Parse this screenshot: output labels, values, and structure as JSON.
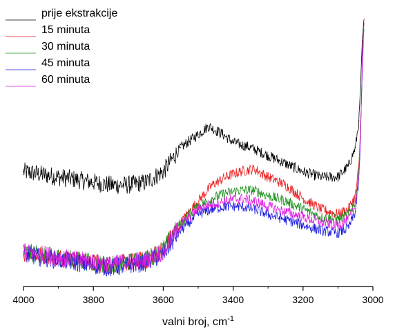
{
  "chart_data": {
    "type": "line",
    "xlabel": "valni broj, cm",
    "xlabel_superscript": "-1",
    "x_reversed": true,
    "xlim": [
      4000,
      3000
    ],
    "xticks": [
      4000,
      3800,
      3600,
      3400,
      3200,
      3000
    ],
    "y_ticks_shown": false,
    "ylim": [
      0,
      1
    ],
    "legend": {
      "placement": "top-left"
    },
    "series": [
      {
        "name": "prije ekstrakcije",
        "color": "#000000",
        "points": [
          [
            4000,
            0.43
          ],
          [
            3950,
            0.42
          ],
          [
            3900,
            0.41
          ],
          [
            3850,
            0.4
          ],
          [
            3800,
            0.39
          ],
          [
            3750,
            0.38
          ],
          [
            3700,
            0.38
          ],
          [
            3650,
            0.39
          ],
          [
            3600,
            0.43
          ],
          [
            3550,
            0.52
          ],
          [
            3500,
            0.57
          ],
          [
            3470,
            0.6
          ],
          [
            3430,
            0.57
          ],
          [
            3400,
            0.54
          ],
          [
            3350,
            0.52
          ],
          [
            3300,
            0.49
          ],
          [
            3250,
            0.46
          ],
          [
            3200,
            0.43
          ],
          [
            3150,
            0.41
          ],
          [
            3100,
            0.41
          ],
          [
            3070,
            0.45
          ],
          [
            3050,
            0.52
          ],
          [
            3040,
            0.62
          ],
          [
            3035,
            0.75
          ],
          [
            3030,
            0.92
          ],
          [
            3025,
            1.0
          ]
        ]
      },
      {
        "name": "15 minuta",
        "color": "#e8191c",
        "points": [
          [
            4000,
            0.13
          ],
          [
            3950,
            0.12
          ],
          [
            3900,
            0.11
          ],
          [
            3850,
            0.1
          ],
          [
            3800,
            0.09
          ],
          [
            3750,
            0.08
          ],
          [
            3700,
            0.09
          ],
          [
            3650,
            0.1
          ],
          [
            3600,
            0.14
          ],
          [
            3550,
            0.24
          ],
          [
            3500,
            0.32
          ],
          [
            3460,
            0.38
          ],
          [
            3420,
            0.41
          ],
          [
            3380,
            0.43
          ],
          [
            3340,
            0.44
          ],
          [
            3300,
            0.41
          ],
          [
            3250,
            0.38
          ],
          [
            3200,
            0.33
          ],
          [
            3150,
            0.29
          ],
          [
            3100,
            0.27
          ],
          [
            3070,
            0.29
          ],
          [
            3050,
            0.34
          ],
          [
            3040,
            0.45
          ],
          [
            3035,
            0.62
          ],
          [
            3030,
            0.85
          ],
          [
            3025,
            1.0
          ]
        ]
      },
      {
        "name": "30 minuta",
        "color": "#1a8f1a",
        "points": [
          [
            4000,
            0.13
          ],
          [
            3950,
            0.12
          ],
          [
            3900,
            0.11
          ],
          [
            3850,
            0.1
          ],
          [
            3800,
            0.09
          ],
          [
            3750,
            0.08
          ],
          [
            3700,
            0.09
          ],
          [
            3650,
            0.1
          ],
          [
            3600,
            0.14
          ],
          [
            3550,
            0.24
          ],
          [
            3500,
            0.3
          ],
          [
            3460,
            0.33
          ],
          [
            3420,
            0.35
          ],
          [
            3380,
            0.36
          ],
          [
            3340,
            0.36
          ],
          [
            3300,
            0.34
          ],
          [
            3250,
            0.32
          ],
          [
            3200,
            0.29
          ],
          [
            3150,
            0.26
          ],
          [
            3100,
            0.25
          ],
          [
            3070,
            0.27
          ],
          [
            3050,
            0.32
          ],
          [
            3040,
            0.43
          ],
          [
            3035,
            0.6
          ],
          [
            3030,
            0.84
          ],
          [
            3025,
            1.0
          ]
        ]
      },
      {
        "name": "45 minuta",
        "color": "#1c1ce0",
        "points": [
          [
            4000,
            0.12
          ],
          [
            3950,
            0.11
          ],
          [
            3900,
            0.1
          ],
          [
            3850,
            0.09
          ],
          [
            3800,
            0.08
          ],
          [
            3750,
            0.07
          ],
          [
            3700,
            0.08
          ],
          [
            3650,
            0.09
          ],
          [
            3600,
            0.12
          ],
          [
            3550,
            0.21
          ],
          [
            3500,
            0.27
          ],
          [
            3460,
            0.29
          ],
          [
            3420,
            0.3
          ],
          [
            3380,
            0.3
          ],
          [
            3340,
            0.29
          ],
          [
            3300,
            0.27
          ],
          [
            3250,
            0.25
          ],
          [
            3200,
            0.23
          ],
          [
            3150,
            0.21
          ],
          [
            3100,
            0.2
          ],
          [
            3070,
            0.22
          ],
          [
            3050,
            0.28
          ],
          [
            3040,
            0.4
          ],
          [
            3035,
            0.58
          ],
          [
            3030,
            0.83
          ],
          [
            3025,
            1.0
          ]
        ]
      },
      {
        "name": "60 minuta",
        "color": "#e01ce0",
        "points": [
          [
            4000,
            0.13
          ],
          [
            3950,
            0.12
          ],
          [
            3900,
            0.11
          ],
          [
            3850,
            0.1
          ],
          [
            3800,
            0.09
          ],
          [
            3750,
            0.08
          ],
          [
            3700,
            0.09
          ],
          [
            3650,
            0.1
          ],
          [
            3600,
            0.13
          ],
          [
            3550,
            0.23
          ],
          [
            3500,
            0.29
          ],
          [
            3460,
            0.31
          ],
          [
            3420,
            0.32
          ],
          [
            3380,
            0.33
          ],
          [
            3340,
            0.32
          ],
          [
            3300,
            0.3
          ],
          [
            3250,
            0.28
          ],
          [
            3200,
            0.26
          ],
          [
            3150,
            0.24
          ],
          [
            3100,
            0.23
          ],
          [
            3070,
            0.25
          ],
          [
            3050,
            0.3
          ],
          [
            3040,
            0.42
          ],
          [
            3035,
            0.59
          ],
          [
            3030,
            0.84
          ],
          [
            3025,
            1.0
          ]
        ]
      }
    ]
  }
}
